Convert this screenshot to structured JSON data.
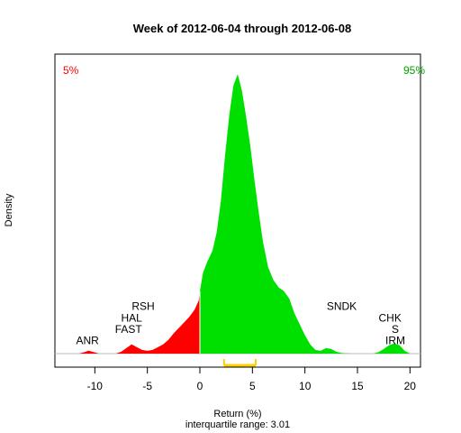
{
  "chart_data": {
    "type": "area",
    "title": "Week of 2012-06-04 through 2012-06-08",
    "xlabel": "Return (%)",
    "subtitle": "interquartile range: 3.01",
    "ylabel": "Density",
    "xlim": [
      -13.8,
      21
    ],
    "xticks": [
      -10,
      -5,
      0,
      5,
      10,
      15,
      20
    ],
    "ylim": [
      0,
      0.158
    ],
    "grid": false,
    "colors": {
      "left_tail": "#ff0000",
      "body": "#00e000",
      "baseline": "#bebebe",
      "iqr_bar": "#ffd000",
      "text": "#000000"
    },
    "corner_labels": {
      "left": {
        "text": "5%",
        "color": "#ff0000"
      },
      "right": {
        "text": "95%",
        "color": "#00a000"
      }
    },
    "split_x": 0,
    "iqr": {
      "q1": 2.3,
      "q3": 5.31
    },
    "density": [
      {
        "x": -13.5,
        "y": 0
      },
      {
        "x": -11.5,
        "y": 0
      },
      {
        "x": -11.0,
        "y": 0.0008
      },
      {
        "x": -10.6,
        "y": 0.0016
      },
      {
        "x": -10.1,
        "y": 0.0008
      },
      {
        "x": -9.6,
        "y": 0
      },
      {
        "x": -8.0,
        "y": 0
      },
      {
        "x": -7.5,
        "y": 0.001
      },
      {
        "x": -7.0,
        "y": 0.003
      },
      {
        "x": -6.5,
        "y": 0.005
      },
      {
        "x": -6.0,
        "y": 0.0035
      },
      {
        "x": -5.5,
        "y": 0.002
      },
      {
        "x": -5.0,
        "y": 0.0015
      },
      {
        "x": -4.5,
        "y": 0.002
      },
      {
        "x": -4.0,
        "y": 0.0035
      },
      {
        "x": -3.5,
        "y": 0.005
      },
      {
        "x": -3.0,
        "y": 0.0075
      },
      {
        "x": -2.5,
        "y": 0.011
      },
      {
        "x": -2.0,
        "y": 0.014
      },
      {
        "x": -1.5,
        "y": 0.017
      },
      {
        "x": -1.0,
        "y": 0.02
      },
      {
        "x": -0.5,
        "y": 0.024
      },
      {
        "x": -0.1,
        "y": 0.029
      },
      {
        "x": 0.0,
        "y": 0.034
      },
      {
        "x": 0.3,
        "y": 0.044
      },
      {
        "x": 0.7,
        "y": 0.05
      },
      {
        "x": 1.2,
        "y": 0.056
      },
      {
        "x": 1.6,
        "y": 0.066
      },
      {
        "x": 2.0,
        "y": 0.083
      },
      {
        "x": 2.4,
        "y": 0.108
      },
      {
        "x": 2.8,
        "y": 0.13
      },
      {
        "x": 3.2,
        "y": 0.146
      },
      {
        "x": 3.6,
        "y": 0.152
      },
      {
        "x": 4.0,
        "y": 0.143
      },
      {
        "x": 4.4,
        "y": 0.129
      },
      {
        "x": 4.8,
        "y": 0.113
      },
      {
        "x": 5.2,
        "y": 0.094
      },
      {
        "x": 5.6,
        "y": 0.077
      },
      {
        "x": 6.0,
        "y": 0.061
      },
      {
        "x": 6.5,
        "y": 0.047
      },
      {
        "x": 7.0,
        "y": 0.04
      },
      {
        "x": 7.5,
        "y": 0.036
      },
      {
        "x": 8.0,
        "y": 0.034
      },
      {
        "x": 8.5,
        "y": 0.03
      },
      {
        "x": 9.0,
        "y": 0.022
      },
      {
        "x": 9.5,
        "y": 0.016
      },
      {
        "x": 10.0,
        "y": 0.01
      },
      {
        "x": 10.5,
        "y": 0.005
      },
      {
        "x": 11.0,
        "y": 0.002
      },
      {
        "x": 11.5,
        "y": 0.0015
      },
      {
        "x": 12.0,
        "y": 0.003
      },
      {
        "x": 12.5,
        "y": 0.0025
      },
      {
        "x": 13.0,
        "y": 0.001
      },
      {
        "x": 13.5,
        "y": 0.0003
      },
      {
        "x": 14.5,
        "y": 0
      },
      {
        "x": 16.5,
        "y": 0
      },
      {
        "x": 17.0,
        "y": 0.0008
      },
      {
        "x": 17.5,
        "y": 0.0025
      },
      {
        "x": 18.0,
        "y": 0.0045
      },
      {
        "x": 18.5,
        "y": 0.0055
      },
      {
        "x": 19.0,
        "y": 0.0045
      },
      {
        "x": 19.5,
        "y": 0.0015
      },
      {
        "x": 20.0,
        "y": 0
      },
      {
        "x": 21.0,
        "y": 0
      }
    ],
    "stock_labels": [
      {
        "text": "ANR",
        "x": -10.7,
        "y": 0.0052
      },
      {
        "text": "FAST",
        "x": -6.8,
        "y": 0.0112
      },
      {
        "text": "HAL",
        "x": -6.5,
        "y": 0.0175
      },
      {
        "text": "RSH",
        "x": -5.4,
        "y": 0.0238
      },
      {
        "text": "IRM",
        "x": 18.6,
        "y": 0.0052
      },
      {
        "text": "S",
        "x": 18.6,
        "y": 0.0112
      },
      {
        "text": "CHK",
        "x": 18.1,
        "y": 0.0175
      },
      {
        "text": "SNDK",
        "x": 13.5,
        "y": 0.0238
      }
    ]
  }
}
